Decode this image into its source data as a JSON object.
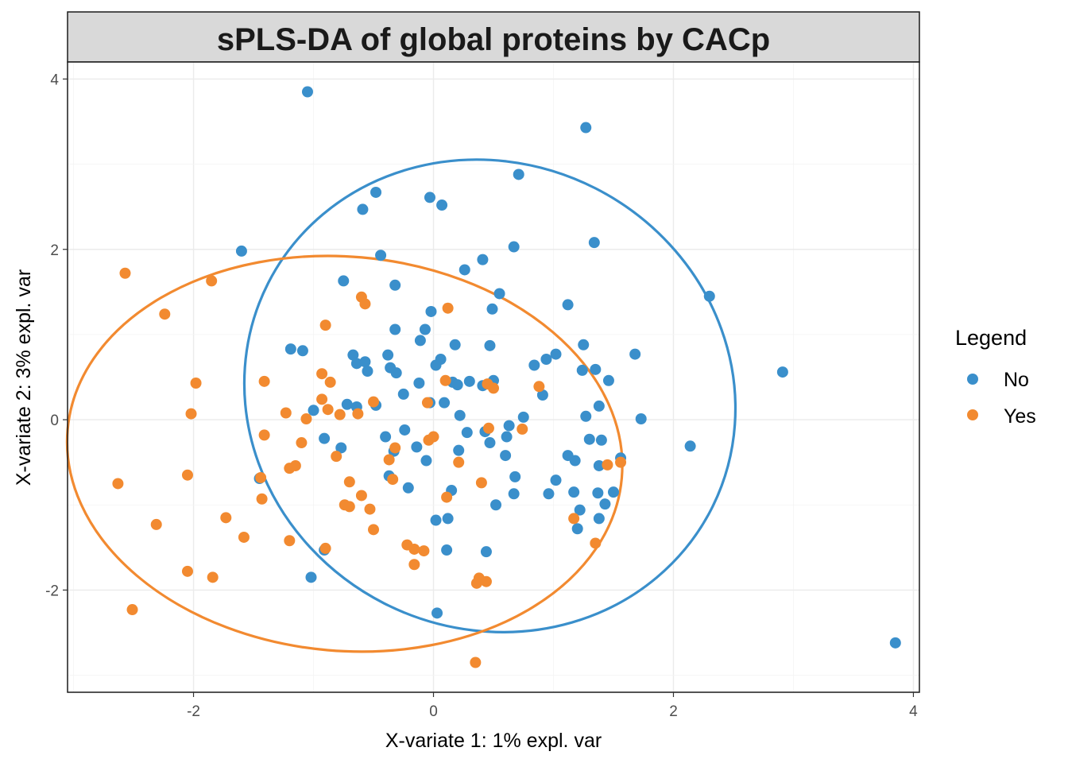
{
  "chart_data": {
    "type": "scatter",
    "title": "sPLS-DA of global proteins by CACp",
    "xlabel": "X-variate 1: 1% expl. var",
    "ylabel": "X-variate 2: 3% expl. var",
    "xlim": [
      -3.05,
      4.05
    ],
    "ylim": [
      -3.2,
      4.2
    ],
    "x_ticks": [
      -2,
      0,
      2,
      4
    ],
    "x_tick_labels": [
      "-2",
      "0",
      "2",
      "4"
    ],
    "y_ticks": [
      -2,
      0,
      2,
      4
    ],
    "y_tick_labels": [
      "-2",
      "0",
      "2",
      "4"
    ],
    "grid": true,
    "legend": {
      "title": "Legend",
      "position": "right",
      "entries": [
        {
          "label": "No",
          "color": "#3a8fcb"
        },
        {
          "label": "Yes",
          "color": "#f28a30"
        }
      ]
    },
    "series": [
      {
        "name": "No",
        "color": "#3a8fcb",
        "ellipse": {
          "center": [
            0.47,
            0.28
          ],
          "semi_axes_px": [
            313,
            293
          ],
          "rotation_deg": 27
        },
        "points": [
          [
            -1.05,
            3.85
          ],
          [
            1.27,
            3.43
          ],
          [
            0.71,
            2.88
          ],
          [
            -0.48,
            2.67
          ],
          [
            -0.03,
            2.61
          ],
          [
            0.07,
            2.52
          ],
          [
            -0.59,
            2.47
          ],
          [
            1.34,
            2.08
          ],
          [
            0.67,
            2.03
          ],
          [
            -1.6,
            1.98
          ],
          [
            -0.44,
            1.93
          ],
          [
            0.41,
            1.88
          ],
          [
            0.26,
            1.76
          ],
          [
            -0.75,
            1.63
          ],
          [
            -0.32,
            1.58
          ],
          [
            0.55,
            1.48
          ],
          [
            2.3,
            1.45
          ],
          [
            1.12,
            1.35
          ],
          [
            -0.02,
            1.27
          ],
          [
            0.49,
            1.3
          ],
          [
            -0.32,
            1.06
          ],
          [
            -0.07,
            1.06
          ],
          [
            -0.11,
            0.93
          ],
          [
            0.18,
            0.88
          ],
          [
            1.25,
            0.88
          ],
          [
            0.47,
            0.87
          ],
          [
            -1.19,
            0.83
          ],
          [
            -1.09,
            0.81
          ],
          [
            1.68,
            0.77
          ],
          [
            1.02,
            0.77
          ],
          [
            -0.67,
            0.76
          ],
          [
            0.94,
            0.71
          ],
          [
            -0.38,
            0.76
          ],
          [
            0.06,
            0.71
          ],
          [
            0.84,
            0.64
          ],
          [
            -0.64,
            0.66
          ],
          [
            -0.57,
            0.68
          ],
          [
            0.02,
            0.64
          ],
          [
            2.91,
            0.56
          ],
          [
            1.35,
            0.59
          ],
          [
            1.24,
            0.58
          ],
          [
            -0.36,
            0.61
          ],
          [
            -0.55,
            0.57
          ],
          [
            -0.31,
            0.55
          ],
          [
            1.46,
            0.46
          ],
          [
            0.5,
            0.46
          ],
          [
            0.16,
            0.44
          ],
          [
            0.3,
            0.45
          ],
          [
            -0.12,
            0.43
          ],
          [
            -0.25,
            0.3
          ],
          [
            0.91,
            0.29
          ],
          [
            0.2,
            0.41
          ],
          [
            0.41,
            0.4
          ],
          [
            1.38,
            0.16
          ],
          [
            -0.72,
            0.18
          ],
          [
            -0.48,
            0.17
          ],
          [
            -0.64,
            0.15
          ],
          [
            -0.03,
            0.2
          ],
          [
            0.09,
            0.2
          ],
          [
            -1.0,
            0.11
          ],
          [
            0.22,
            0.05
          ],
          [
            0.75,
            0.03
          ],
          [
            1.27,
            0.04
          ],
          [
            1.73,
            0.01
          ],
          [
            0.63,
            -0.07
          ],
          [
            -0.24,
            -0.12
          ],
          [
            0.28,
            -0.15
          ],
          [
            -0.4,
            -0.2
          ],
          [
            -0.91,
            -0.22
          ],
          [
            0.43,
            -0.14
          ],
          [
            0.61,
            -0.2
          ],
          [
            1.3,
            -0.23
          ],
          [
            1.4,
            -0.24
          ],
          [
            2.14,
            -0.31
          ],
          [
            0.47,
            -0.27
          ],
          [
            -0.14,
            -0.32
          ],
          [
            -0.77,
            -0.33
          ],
          [
            -0.33,
            -0.37
          ],
          [
            0.21,
            -0.36
          ],
          [
            0.6,
            -0.42
          ],
          [
            1.12,
            -0.42
          ],
          [
            1.56,
            -0.45
          ],
          [
            1.18,
            -0.48
          ],
          [
            -0.06,
            -0.48
          ],
          [
            1.38,
            -0.54
          ],
          [
            -0.37,
            -0.66
          ],
          [
            0.68,
            -0.67
          ],
          [
            1.02,
            -0.71
          ],
          [
            -1.45,
            -0.69
          ],
          [
            -0.21,
            -0.8
          ],
          [
            0.15,
            -0.83
          ],
          [
            1.17,
            -0.85
          ],
          [
            1.37,
            -0.86
          ],
          [
            1.5,
            -0.85
          ],
          [
            0.67,
            -0.87
          ],
          [
            0.96,
            -0.87
          ],
          [
            1.43,
            -0.99
          ],
          [
            0.52,
            -1.0
          ],
          [
            1.22,
            -1.06
          ],
          [
            0.02,
            -1.18
          ],
          [
            0.12,
            -1.16
          ],
          [
            1.38,
            -1.16
          ],
          [
            1.2,
            -1.28
          ],
          [
            -0.91,
            -1.53
          ],
          [
            0.11,
            -1.53
          ],
          [
            0.44,
            -1.55
          ],
          [
            -1.02,
            -1.85
          ],
          [
            0.03,
            -2.27
          ],
          [
            3.85,
            -2.62
          ]
        ]
      },
      {
        "name": "Yes",
        "color": "#f28a30",
        "ellipse": {
          "center": [
            -0.74,
            -0.4
          ],
          "semi_axes_px": [
            350,
            248
          ],
          "rotation_deg": 5
        },
        "points": [
          [
            -2.57,
            1.72
          ],
          [
            -1.85,
            1.63
          ],
          [
            -2.24,
            1.24
          ],
          [
            -0.6,
            1.44
          ],
          [
            -0.57,
            1.36
          ],
          [
            0.12,
            1.31
          ],
          [
            -0.9,
            1.11
          ],
          [
            -0.93,
            0.54
          ],
          [
            -0.86,
            0.44
          ],
          [
            -1.41,
            0.45
          ],
          [
            -1.98,
            0.43
          ],
          [
            0.1,
            0.46
          ],
          [
            0.45,
            0.42
          ],
          [
            0.5,
            0.37
          ],
          [
            0.88,
            0.39
          ],
          [
            -0.93,
            0.24
          ],
          [
            -0.5,
            0.21
          ],
          [
            -0.05,
            0.2
          ],
          [
            -0.88,
            0.12
          ],
          [
            -0.63,
            0.07
          ],
          [
            -1.23,
            0.08
          ],
          [
            -2.02,
            0.07
          ],
          [
            -0.78,
            0.06
          ],
          [
            -1.06,
            0.01
          ],
          [
            0.46,
            -0.1
          ],
          [
            0.74,
            -0.11
          ],
          [
            -1.41,
            -0.18
          ],
          [
            0.0,
            -0.2
          ],
          [
            -0.04,
            -0.24
          ],
          [
            -1.1,
            -0.27
          ],
          [
            -0.32,
            -0.33
          ],
          [
            -0.81,
            -0.43
          ],
          [
            -0.37,
            -0.47
          ],
          [
            0.21,
            -0.5
          ],
          [
            1.56,
            -0.5
          ],
          [
            1.45,
            -0.53
          ],
          [
            -1.15,
            -0.54
          ],
          [
            -1.2,
            -0.57
          ],
          [
            -2.05,
            -0.65
          ],
          [
            -1.44,
            -0.68
          ],
          [
            -0.34,
            -0.7
          ],
          [
            -0.7,
            -0.73
          ],
          [
            0.4,
            -0.74
          ],
          [
            -2.63,
            -0.75
          ],
          [
            -0.6,
            -0.89
          ],
          [
            0.11,
            -0.91
          ],
          [
            -1.43,
            -0.93
          ],
          [
            -0.74,
            -1.0
          ],
          [
            -0.7,
            -1.02
          ],
          [
            -0.53,
            -1.05
          ],
          [
            -1.73,
            -1.15
          ],
          [
            1.17,
            -1.16
          ],
          [
            -2.31,
            -1.23
          ],
          [
            -0.5,
            -1.29
          ],
          [
            -1.58,
            -1.38
          ],
          [
            -1.2,
            -1.42
          ],
          [
            1.35,
            -1.45
          ],
          [
            -0.22,
            -1.47
          ],
          [
            -0.16,
            -1.52
          ],
          [
            -0.9,
            -1.51
          ],
          [
            -0.08,
            -1.54
          ],
          [
            -0.16,
            -1.7
          ],
          [
            -2.05,
            -1.78
          ],
          [
            -1.84,
            -1.85
          ],
          [
            0.38,
            -1.86
          ],
          [
            0.44,
            -1.9
          ],
          [
            0.36,
            -1.92
          ],
          [
            -2.51,
            -2.23
          ],
          [
            0.35,
            -2.85
          ]
        ]
      }
    ]
  }
}
